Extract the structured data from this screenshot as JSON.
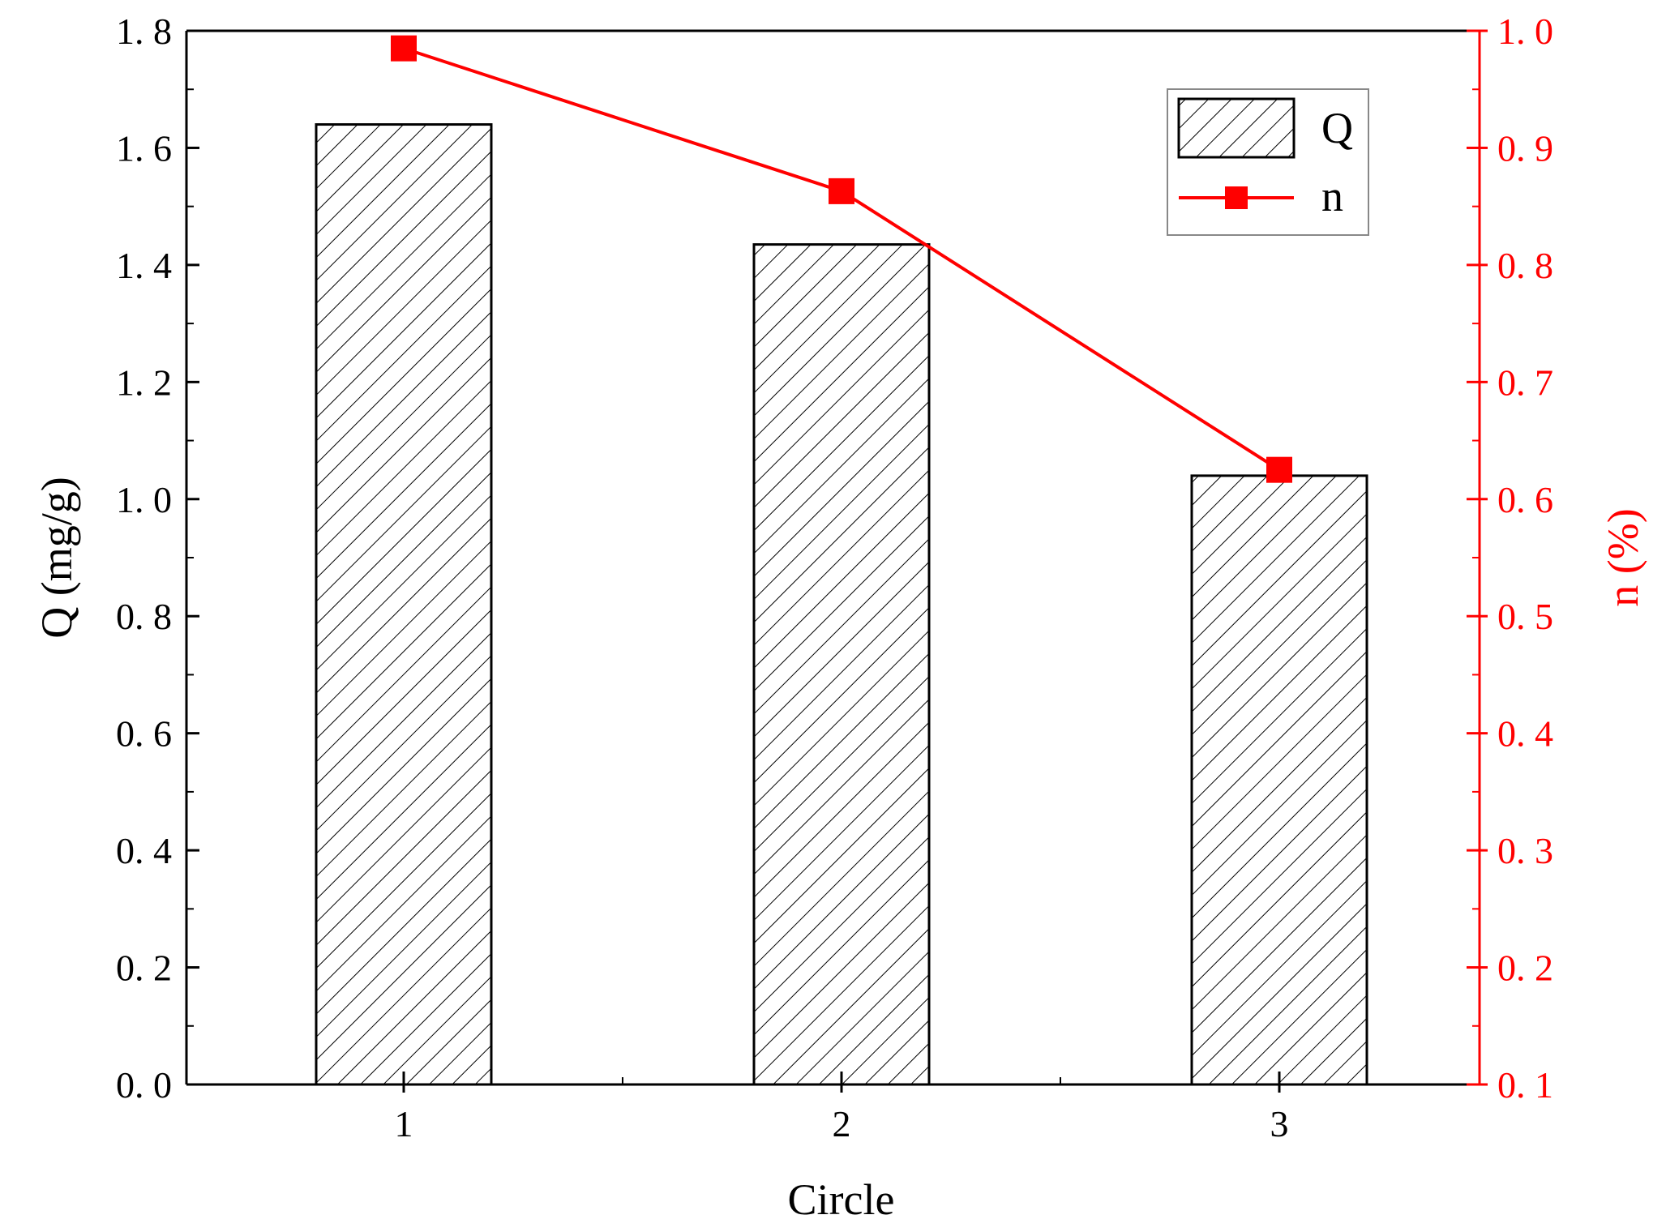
{
  "chart_data": {
    "type": "bar",
    "xlabel": "Circle",
    "ylabel": "Q (mg/g)",
    "y2label": "n (%)",
    "categories": [
      "1",
      "2",
      "3"
    ],
    "ylim": [
      0.0,
      1.8
    ],
    "y2lim": [
      0.1,
      1.0
    ],
    "yticks": [
      "0. 0",
      "0. 2",
      "0. 4",
      "0. 6",
      "0. 8",
      "1. 0",
      "1. 2",
      "1. 4",
      "1. 6",
      "1. 8"
    ],
    "y2ticks": [
      "0. 1",
      "0. 2",
      "0. 3",
      "0. 4",
      "0. 5",
      "0. 6",
      "0. 7",
      "0. 8",
      "0. 9",
      "1. 0"
    ],
    "grid": false,
    "legend_position": "top-right",
    "series": [
      {
        "name": "Q",
        "kind": "bar",
        "axis": "left",
        "pattern": "hatched",
        "values": [
          1.64,
          1.435,
          1.04
        ]
      },
      {
        "name": "n",
        "kind": "line",
        "axis": "right",
        "marker": "square",
        "values": [
          0.985,
          0.863,
          0.625
        ]
      }
    ],
    "colors": {
      "bar_stroke": "#000000",
      "line": "#ff0000",
      "axis_left": "#000000",
      "axis_right": "#ff0000"
    }
  }
}
